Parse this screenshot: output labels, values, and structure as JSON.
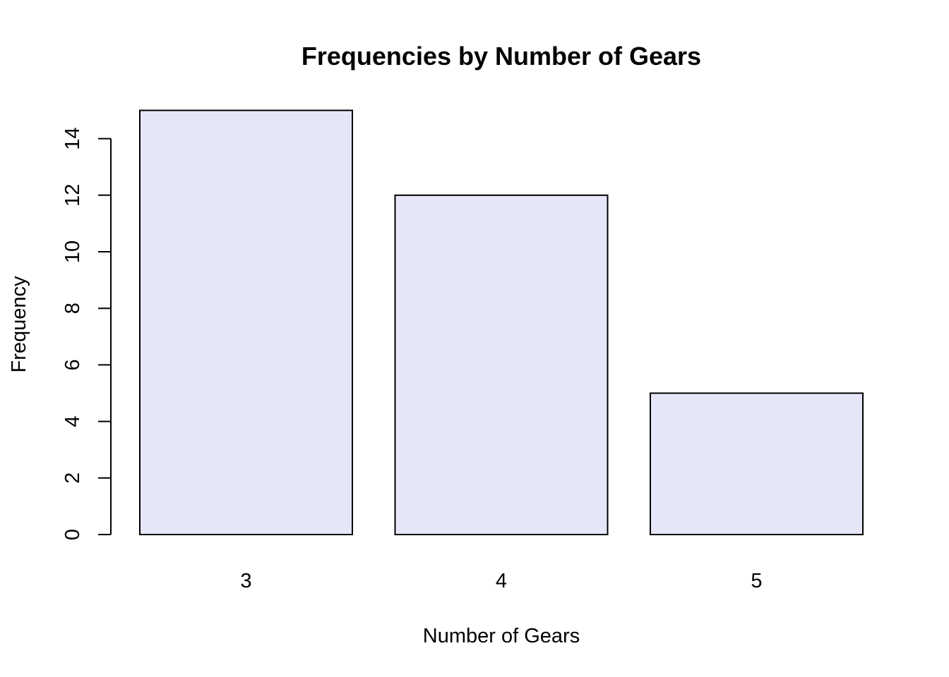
{
  "chart_data": {
    "type": "bar",
    "title": "Frequencies by Number of Gears",
    "xlabel": "Number of Gears",
    "ylabel": "Frequency",
    "categories": [
      "3",
      "4",
      "5"
    ],
    "values": [
      15,
      12,
      5
    ],
    "ylim": [
      0,
      15
    ],
    "yticks": [
      0,
      2,
      4,
      6,
      8,
      10,
      12,
      14
    ],
    "bar_color": "#e6e6f9",
    "bar_border_color": "#000000",
    "grid": false,
    "legend": "none"
  }
}
